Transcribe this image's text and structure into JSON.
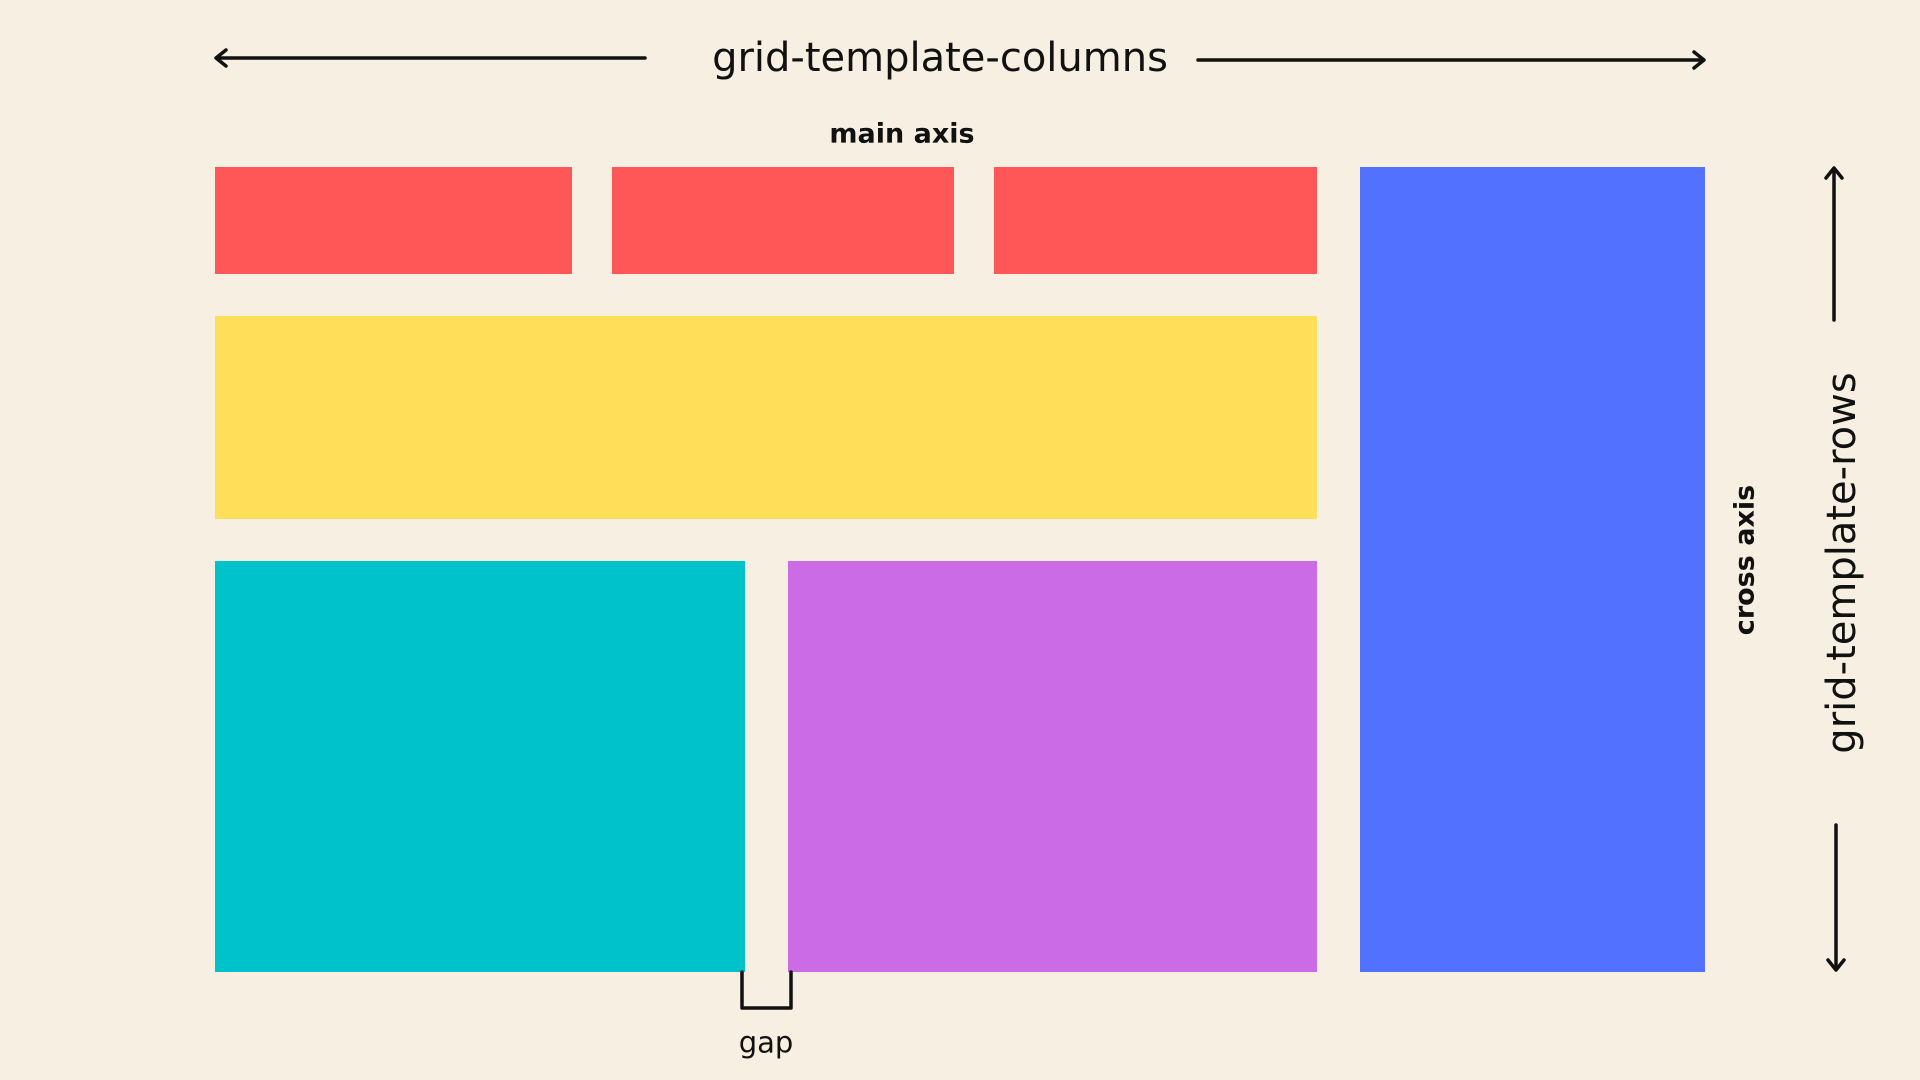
{
  "background_color": "#F6EFE2",
  "labels": {
    "columns_title": "grid-template-columns",
    "main_axis": "main axis",
    "rows_title": "grid-template-rows",
    "cross_axis": "cross axis",
    "gap": "gap"
  },
  "colors": {
    "red": "#FF5757",
    "yellow": "#FFDE59",
    "teal": "#00C2CB",
    "purple": "#CB6CE6",
    "blue": "#5271FF",
    "ink": "#111111"
  }
}
